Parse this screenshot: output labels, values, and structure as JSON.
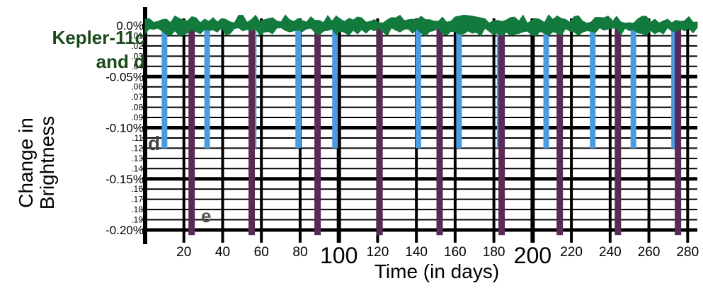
{
  "chart_data": {
    "type": "line",
    "title": "Kepler-11c\nand d",
    "xlabel": "Time (in days)",
    "ylabel_line1": "Change in",
    "ylabel_line2": "Brightness",
    "xlim": [
      0,
      285
    ],
    "ylim": [
      -0.2,
      0.0
    ],
    "x_major_ticks": [
      {
        "value": 20,
        "label": "20"
      },
      {
        "value": 40,
        "label": "40"
      },
      {
        "value": 60,
        "label": "60"
      },
      {
        "value": 80,
        "label": "80"
      },
      {
        "value": 100,
        "label": "100"
      },
      {
        "value": 120,
        "label": "120"
      },
      {
        "value": 140,
        "label": "140"
      },
      {
        "value": 160,
        "label": "160"
      },
      {
        "value": 180,
        "label": "180"
      },
      {
        "value": 200,
        "label": "200"
      },
      {
        "value": 220,
        "label": "220"
      },
      {
        "value": 240,
        "label": "240"
      },
      {
        "value": 260,
        "label": "260"
      },
      {
        "value": 280,
        "label": "280"
      }
    ],
    "emphasized_x_labels": [
      "100",
      "200"
    ],
    "y_major_ticks": [
      {
        "value": 0.0,
        "label": "0.0%"
      },
      {
        "value": -0.05,
        "label": "-0.05%"
      },
      {
        "value": -0.1,
        "label": "-0.10%"
      },
      {
        "value": -0.15,
        "label": "-0.15%"
      },
      {
        "value": -0.2,
        "label": "-0.20%"
      }
    ],
    "y_minor_ticks": [
      {
        "value": -0.01,
        "label": ".01"
      },
      {
        "value": -0.02,
        "label": ".02"
      },
      {
        "value": -0.03,
        "label": ".03"
      },
      {
        "value": -0.04,
        "label": ".04"
      },
      {
        "value": -0.06,
        "label": ".06"
      },
      {
        "value": -0.07,
        "label": ".07"
      },
      {
        "value": -0.08,
        "label": ".08"
      },
      {
        "value": -0.09,
        "label": ".09"
      },
      {
        "value": -0.11,
        "label": ".11"
      },
      {
        "value": -0.12,
        "label": ".12"
      },
      {
        "value": -0.13,
        "label": ".13"
      },
      {
        "value": -0.14,
        "label": ".14"
      },
      {
        "value": -0.16,
        "label": ".16"
      },
      {
        "value": -0.17,
        "label": ".17"
      },
      {
        "value": -0.18,
        "label": ".18"
      },
      {
        "value": -0.19,
        "label": ".19"
      }
    ],
    "grid": true,
    "baseline": {
      "value": 0.0,
      "color": "#117a3c"
    },
    "series": [
      {
        "color": "#4a9be0",
        "depth": -0.12,
        "transit_days": [
          10,
          32,
          56,
          79,
          98,
          121,
          141,
          162,
          183,
          207,
          231,
          252,
          273
        ]
      },
      {
        "color": "#5a2a57",
        "depth": -0.205,
        "transit_days": [
          24,
          55,
          89,
          121,
          152,
          184,
          214,
          244,
          275
        ]
      }
    ],
    "annotations": [
      {
        "text": "d",
        "x": 1,
        "y": -0.115
      },
      {
        "text": "e",
        "x": 30,
        "y": -0.185
      }
    ]
  }
}
